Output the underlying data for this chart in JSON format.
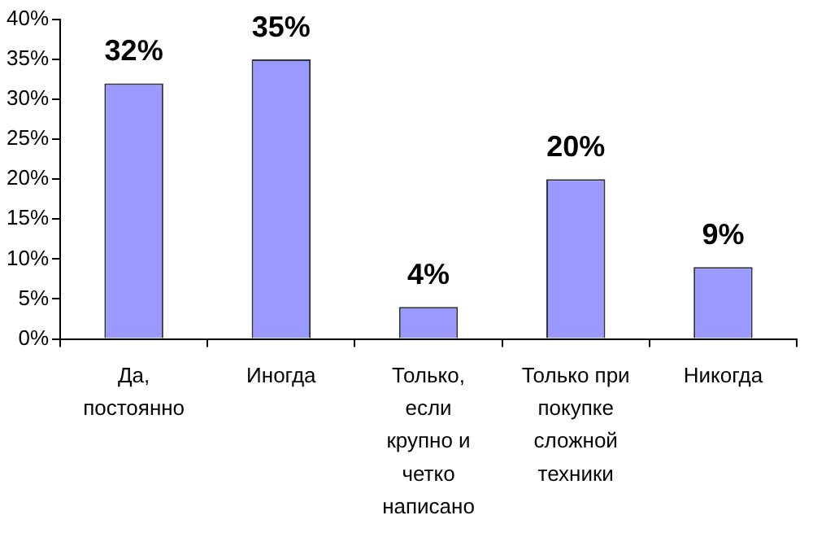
{
  "chart_data": {
    "type": "bar",
    "categories": [
      "Да, постоянно",
      "Иногда",
      "Только, если крупно и четко написано",
      "Только при покупке сложной техники",
      "Никогда"
    ],
    "values": [
      32,
      35,
      4,
      20,
      9
    ],
    "value_labels": [
      "32%",
      "35%",
      "4%",
      "20%",
      "9%"
    ],
    "color": "#9999ff",
    "ylim": [
      0,
      40
    ],
    "yticks": [
      {
        "value": 0,
        "label": "0%"
      },
      {
        "value": 5,
        "label": "5%"
      },
      {
        "value": 10,
        "label": "10%"
      },
      {
        "value": 15,
        "label": "15%"
      },
      {
        "value": 20,
        "label": "20%"
      },
      {
        "value": 25,
        "label": "25%"
      },
      {
        "value": 30,
        "label": "30%"
      },
      {
        "value": 35,
        "label": "35%"
      },
      {
        "value": 40,
        "label": "40%"
      }
    ],
    "grid": false,
    "legend": false
  }
}
